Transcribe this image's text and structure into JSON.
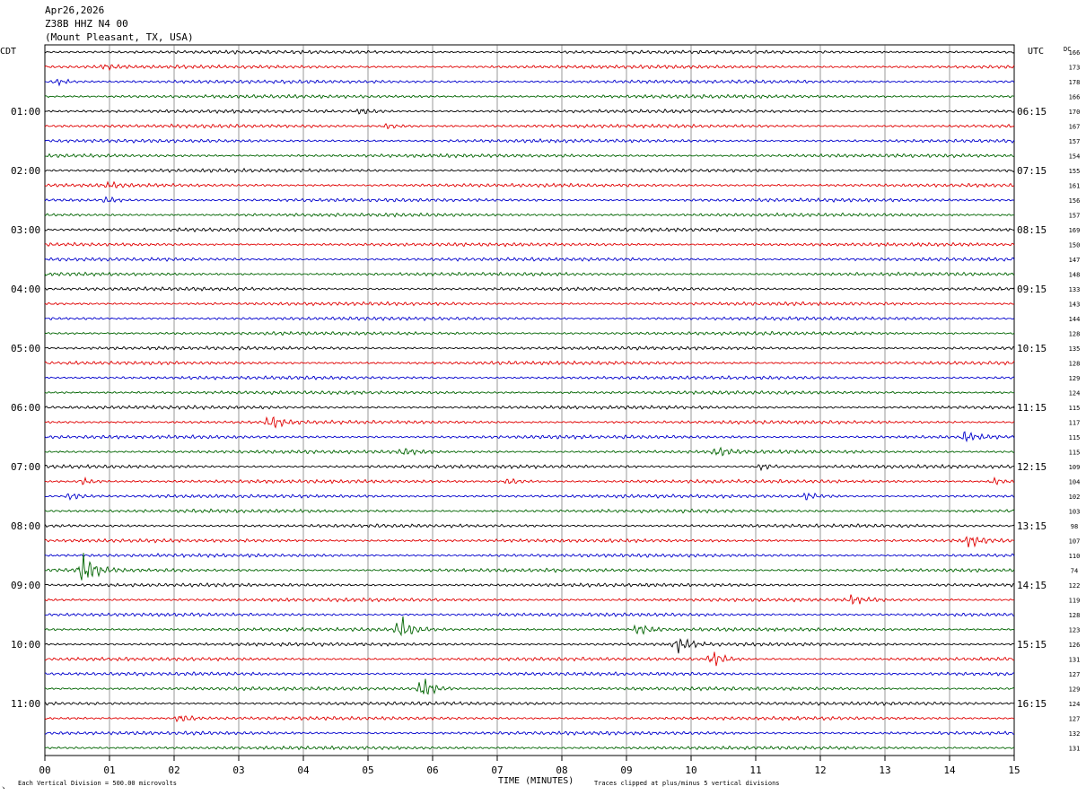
{
  "header": {
    "date": "Apr26,2026",
    "station": "Z38B HHZ N4 00",
    "location": "(Mount Pleasant, TX, USA)"
  },
  "footer": {
    "scale_note": "Each Vertical Division =  500.00 microvolts",
    "clip_note": "Traces clipped at plus/minus 5 vertical divisions"
  },
  "chart_data": {
    "type": "line",
    "subtype": "helicorder",
    "xlabel": "TIME (MINUTES)",
    "x_ticks": [
      "00",
      "01",
      "02",
      "03",
      "04",
      "05",
      "06",
      "07",
      "08",
      "09",
      "10",
      "11",
      "12",
      "13",
      "14",
      "15"
    ],
    "xlim": [
      0,
      15
    ],
    "left_axis_title": "CDT",
    "right_axis_title": "UTC",
    "dc_label": "DC",
    "left_hour_labels": [
      "01:00",
      "02:00",
      "03:00",
      "04:00",
      "05:00",
      "06:00",
      "07:00",
      "08:00",
      "09:00",
      "10:00",
      "11:00"
    ],
    "right_hour_labels": [
      "06:15",
      "07:15",
      "08:15",
      "09:15",
      "10:15",
      "11:15",
      "12:15",
      "13:15",
      "14:15",
      "15:15",
      "16:15"
    ],
    "row_colors": [
      "#000000",
      "#e00000",
      "#0000cc",
      "#006400"
    ],
    "dc_offsets": [
      166,
      173,
      178,
      166,
      170,
      167,
      157,
      154,
      155,
      161,
      156,
      157,
      169,
      150,
      147,
      148,
      133,
      143,
      144,
      128,
      135,
      128,
      129,
      124,
      115,
      117,
      115,
      115,
      109,
      104,
      102,
      103,
      98,
      107,
      110,
      74,
      122,
      119,
      128,
      123,
      126,
      131,
      127,
      129,
      124,
      127,
      132,
      131
    ],
    "events": [
      {
        "row": 1,
        "minute": 0.95,
        "amplitude": 1.2
      },
      {
        "row": 2,
        "minute": 0.2,
        "amplitude": 1.4
      },
      {
        "row": 4,
        "minute": 4.9,
        "amplitude": 1.2
      },
      {
        "row": 5,
        "minute": 5.3,
        "amplitude": 1.0
      },
      {
        "row": 9,
        "minute": 1.0,
        "amplitude": 1.0
      },
      {
        "row": 10,
        "minute": 0.95,
        "amplitude": 1.2
      },
      {
        "row": 25,
        "minute": 3.5,
        "amplitude": 2.8
      },
      {
        "row": 26,
        "minute": 14.25,
        "amplitude": 2.0
      },
      {
        "row": 27,
        "minute": 5.55,
        "amplitude": 1.4
      },
      {
        "row": 27,
        "minute": 10.4,
        "amplitude": 1.6
      },
      {
        "row": 28,
        "minute": 11.1,
        "amplitude": 1.2
      },
      {
        "row": 29,
        "minute": 0.6,
        "amplitude": 1.4
      },
      {
        "row": 29,
        "minute": 7.2,
        "amplitude": 1.4
      },
      {
        "row": 29,
        "minute": 14.7,
        "amplitude": 1.4
      },
      {
        "row": 30,
        "minute": 0.4,
        "amplitude": 1.6
      },
      {
        "row": 30,
        "minute": 11.8,
        "amplitude": 1.6
      },
      {
        "row": 33,
        "minute": 14.3,
        "amplitude": 3.2
      },
      {
        "row": 35,
        "minute": 0.6,
        "amplitude": 7.0
      },
      {
        "row": 37,
        "minute": 12.5,
        "amplitude": 2.0
      },
      {
        "row": 39,
        "minute": 5.5,
        "amplitude": 5.5
      },
      {
        "row": 39,
        "minute": 9.2,
        "amplitude": 2.6
      },
      {
        "row": 40,
        "minute": 9.8,
        "amplitude": 3.5
      },
      {
        "row": 41,
        "minute": 10.35,
        "amplitude": 3.2
      },
      {
        "row": 43,
        "minute": 5.85,
        "amplitude": 4.5
      },
      {
        "row": 45,
        "minute": 2.1,
        "amplitude": 1.8
      }
    ]
  }
}
